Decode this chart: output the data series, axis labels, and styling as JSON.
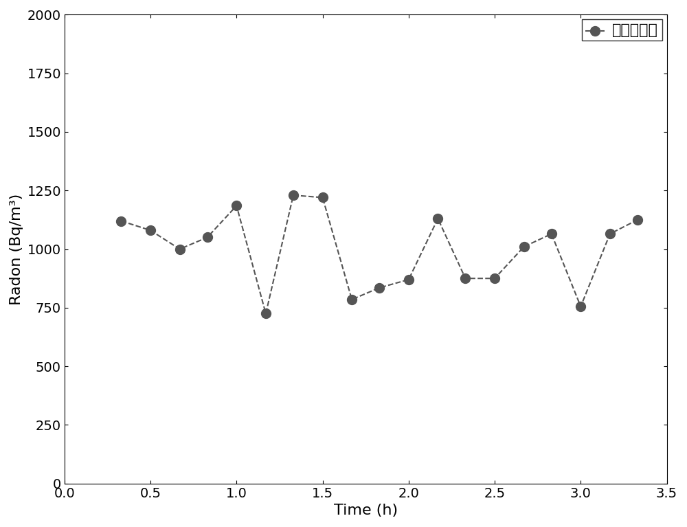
{
  "x": [
    0.33,
    0.5,
    0.67,
    0.83,
    1.0,
    1.17,
    1.33,
    1.5,
    1.67,
    1.83,
    2.0,
    2.17,
    2.33,
    2.5,
    2.67,
    2.83,
    3.0,
    3.17,
    3.33
  ],
  "y": [
    1120,
    1080,
    1000,
    1050,
    1185,
    725,
    1230,
    1220,
    785,
    835,
    870,
    1130,
    875,
    875,
    1010,
    1065,
    755,
    1065,
    1125
  ],
  "line_color": "#555555",
  "marker_color": "#555555",
  "marker_size": 10,
  "line_width": 1.5,
  "line_style": "--",
  "xlabel": "Time (h)",
  "ylabel": "Radon (Bq/m³)",
  "xlim": [
    0.0,
    3.5
  ],
  "ylim": [
    0,
    2000
  ],
  "xticks": [
    0.0,
    0.5,
    1.0,
    1.5,
    2.0,
    2.5,
    3.0,
    3.5
  ],
  "yticks": [
    0,
    250,
    500,
    750,
    1000,
    1250,
    1500,
    1750,
    2000
  ],
  "legend_label": "超声雾化法",
  "legend_fontsize": 16,
  "axis_fontsize": 16,
  "tick_fontsize": 14,
  "background_color": "#ffffff"
}
